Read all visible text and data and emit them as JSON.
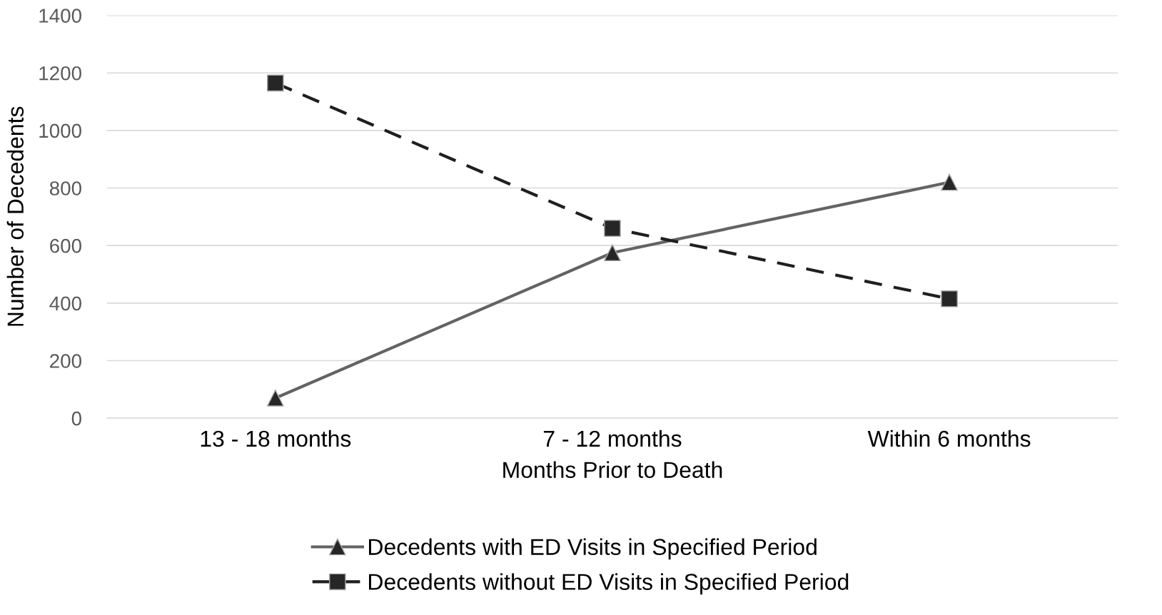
{
  "chart_data": {
    "type": "line",
    "xlabel": "Months Prior to Death",
    "ylabel": "Number of Decedents",
    "categories": [
      "13 - 18 months",
      "7 - 12 months",
      "Within 6 months"
    ],
    "series": [
      {
        "name": "Decedents with ED Visits in Specified Period",
        "color": "#636363",
        "values": [
          70,
          575,
          820
        ],
        "marker": "triangle",
        "line_style": "solid"
      },
      {
        "name": "Decedents without ED Visits in Specified Period",
        "color": "#1f1f1f",
        "values": [
          1165,
          660,
          415
        ],
        "marker": "square",
        "line_style": "dashed"
      }
    ],
    "ylim": [
      0,
      1400
    ],
    "yticks": [
      0,
      200,
      400,
      600,
      800,
      1000,
      1200,
      1400
    ],
    "grid": "y",
    "legend": "bottom"
  }
}
